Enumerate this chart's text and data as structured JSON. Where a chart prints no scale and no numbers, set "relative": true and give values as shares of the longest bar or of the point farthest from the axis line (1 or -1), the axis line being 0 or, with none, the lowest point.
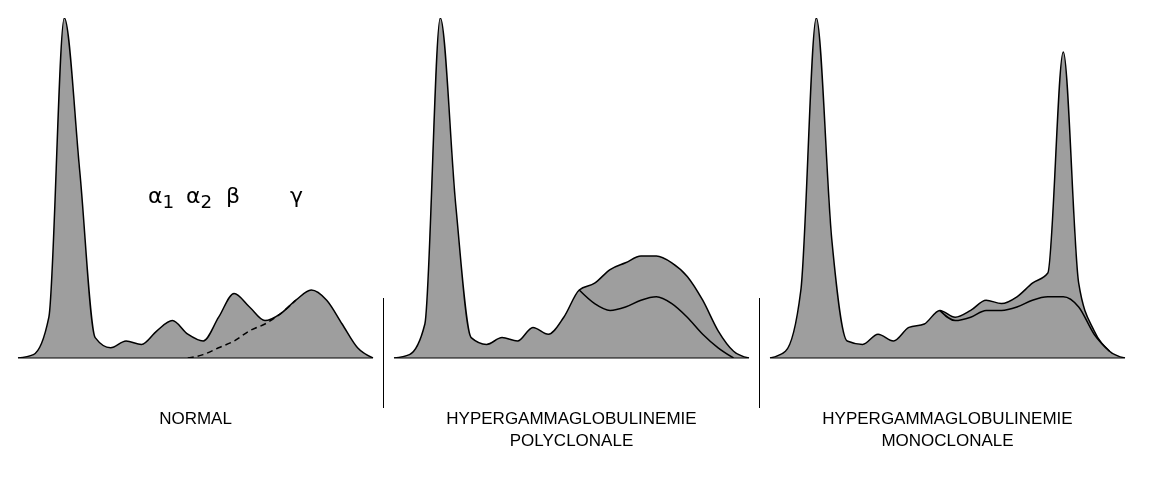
{
  "chart_data": [
    {
      "type": "area",
      "relative": true,
      "title": "NORMAL",
      "annotations": [
        "α$_{1}$",
        "α$_{2}$",
        "β",
        "γ"
      ],
      "categories": [
        null,
        null,
        null,
        null,
        null,
        null,
        null,
        null,
        null,
        null,
        null,
        null,
        null,
        null,
        null,
        null,
        null,
        null,
        null,
        null,
        null,
        null,
        null,
        null
      ],
      "series": [
        {
          "color": "#9e9e9e",
          "values": [
            0,
            0.01,
            0.12,
            1,
            0.55,
            0.06,
            0.03,
            0.05,
            0.04,
            0.08,
            0.11,
            0.07,
            0.05,
            0.12,
            0.19,
            0.15,
            0.11,
            0.13,
            0.17,
            0.2,
            0.17,
            0.1,
            0.03,
            0
          ]
        },
        {
          "type": "line",
          "color": "#000000",
          "line_style": "dashed",
          "values": [
            null,
            null,
            null,
            null,
            null,
            null,
            null,
            null,
            null,
            null,
            null,
            0,
            0.01,
            0.03,
            0.05,
            0.08,
            0.1,
            0.13,
            0.17,
            null,
            null,
            null,
            null,
            null
          ]
        }
      ]
    },
    {
      "type": "area",
      "relative": true,
      "title": "HYPERGAMMAGLOBULINEMIE POLYCLONALE",
      "categories": [
        null,
        null,
        null,
        null,
        null,
        null,
        null,
        null,
        null,
        null,
        null,
        null,
        null,
        null,
        null,
        null,
        null,
        null,
        null,
        null,
        null,
        null,
        null,
        null
      ],
      "series": [
        {
          "color": "#9e9e9e",
          "values": [
            0,
            0.01,
            0.1,
            1,
            0.45,
            0.06,
            0.04,
            0.06,
            0.05,
            0.09,
            0.07,
            0.12,
            0.2,
            0.22,
            0.26,
            0.28,
            0.3,
            0.3,
            0.28,
            0.24,
            0.17,
            0.08,
            0.02,
            0
          ]
        },
        {
          "type": "line",
          "color": "#000000",
          "line_style": "solid",
          "values": [
            null,
            null,
            null,
            null,
            null,
            null,
            null,
            null,
            null,
            null,
            null,
            null,
            0.2,
            0.16,
            0.14,
            0.15,
            0.17,
            0.18,
            0.16,
            0.12,
            0.07,
            0.03,
            0,
            null
          ]
        }
      ]
    },
    {
      "type": "area",
      "relative": true,
      "title": "HYPERGAMMAGLOBULINEMIE MONOCLONALE",
      "categories": [
        null,
        null,
        null,
        null,
        null,
        null,
        null,
        null,
        null,
        null,
        null,
        null,
        null,
        null,
        null,
        null,
        null,
        null,
        null,
        null,
        null,
        null,
        null,
        null
      ],
      "series": [
        {
          "color": "#9e9e9e",
          "values": [
            0,
            0.02,
            0.2,
            1,
            0.35,
            0.05,
            0.04,
            0.07,
            0.05,
            0.09,
            0.1,
            0.14,
            0.12,
            0.14,
            0.17,
            0.16,
            0.18,
            0.22,
            0.25,
            0.9,
            0.22,
            0.08,
            0.02,
            0
          ]
        },
        {
          "type": "line",
          "color": "#000000",
          "line_style": "solid",
          "values": [
            null,
            null,
            null,
            null,
            null,
            null,
            null,
            null,
            null,
            null,
            null,
            0.14,
            0.11,
            0.12,
            0.14,
            0.14,
            0.15,
            0.17,
            0.18,
            0.18,
            0.15,
            0.07,
            0.02,
            null
          ]
        }
      ]
    }
  ]
}
